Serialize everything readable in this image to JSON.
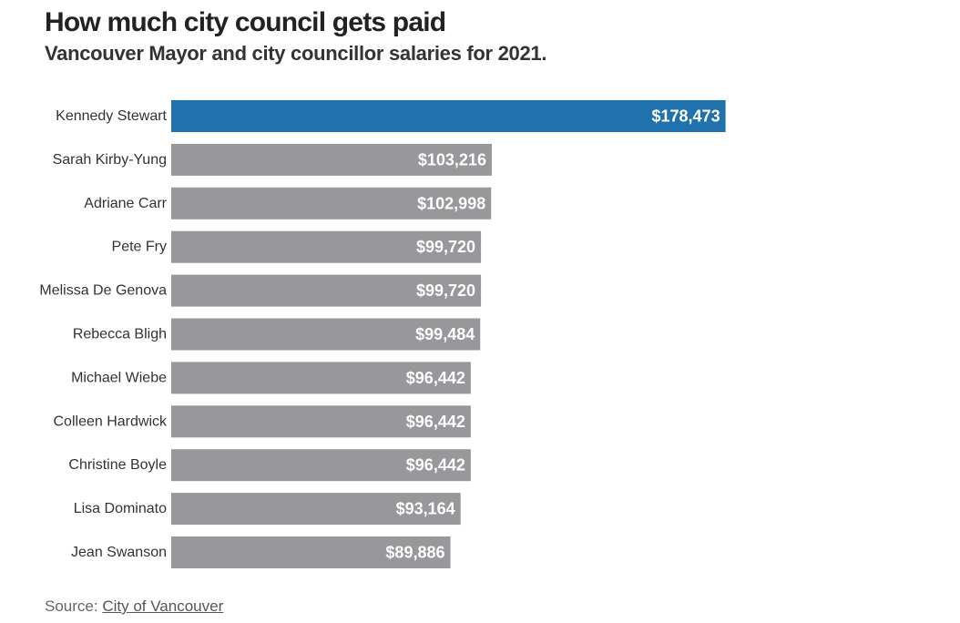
{
  "header": {
    "title": "How much city council gets paid",
    "subtitle": "Vancouver Mayor and city councillor salaries for 2021."
  },
  "footer": {
    "source_prefix": "Source: ",
    "source_link": "City of Vancouver"
  },
  "colors": {
    "highlight": "#1f72ad",
    "default": "#98989b",
    "value_text": "#ffffff"
  },
  "chart_data": {
    "type": "bar",
    "orientation": "horizontal",
    "title": "How much city council gets paid",
    "subtitle": "Vancouver Mayor and city councillor salaries for 2021.",
    "xlabel": "",
    "ylabel": "",
    "xlim": [
      0,
      200000
    ],
    "grid": false,
    "categories": [
      "Kennedy Stewart",
      "Sarah Kirby-Yung",
      "Adriane Carr",
      "Pete Fry",
      "Melissa De Genova",
      "Rebecca Bligh",
      "Michael Wiebe",
      "Colleen Hardwick",
      "Christine Boyle",
      "Lisa Dominato",
      "Jean Swanson"
    ],
    "values": [
      178473,
      103216,
      102998,
      99720,
      99720,
      99484,
      96442,
      96442,
      96442,
      93164,
      89886
    ],
    "value_labels": [
      "$178,473",
      "$103,216",
      "$102,998",
      "$99,720",
      "$99,720",
      "$99,484",
      "$96,442",
      "$96,442",
      "$96,442",
      "$93,164",
      "$89,886"
    ],
    "highlighted": [
      "Kennedy Stewart"
    ]
  }
}
